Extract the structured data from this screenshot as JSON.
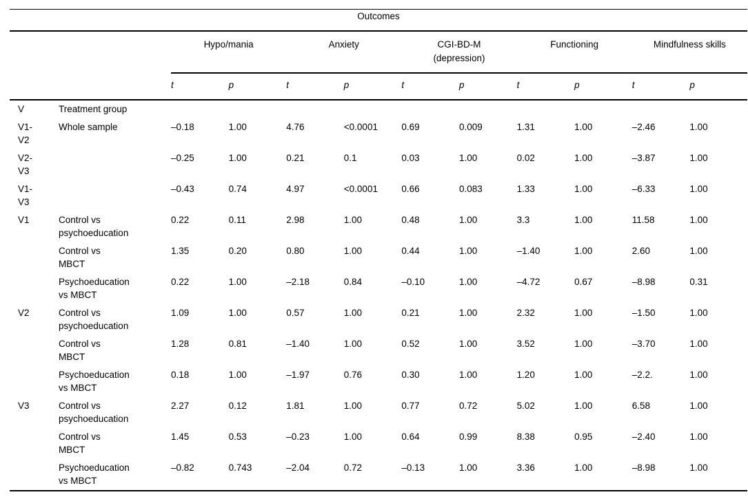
{
  "table": {
    "title": "Outcomes",
    "column_groups": [
      {
        "label": "Hypo/mania"
      },
      {
        "label": "Anxiety"
      },
      {
        "label": "CGI-BD-M\n(depression)"
      },
      {
        "label": "Functioning"
      },
      {
        "label": "Mindfulness skills"
      }
    ],
    "sub_headers": [
      "t",
      "p",
      "t",
      "p",
      "t",
      "p",
      "t",
      "p",
      "t",
      "p"
    ],
    "rows": [
      {
        "visit": "V",
        "comparison": "Treatment group",
        "values": [
          "",
          "",
          "",
          "",
          "",
          "",
          "",
          "",
          "",
          ""
        ]
      },
      {
        "visit": "V1-\nV2",
        "comparison": "Whole sample",
        "values": [
          "–0.18",
          "1.00",
          "4.76",
          "<0.0001",
          "0.69",
          "0.009",
          "1.31",
          "1.00",
          "–2.46",
          "1.00"
        ]
      },
      {
        "visit": "V2-\nV3",
        "comparison": "",
        "values": [
          "–0.25",
          "1.00",
          "0.21",
          "0.1",
          "0.03",
          "1.00",
          "0.02",
          "1.00",
          "–3.87",
          "1.00"
        ]
      },
      {
        "visit": "V1-\nV3",
        "comparison": "",
        "values": [
          "–0.43",
          "0.74",
          "4.97",
          "<0.0001",
          "0.66",
          "0.083",
          "1.33",
          "1.00",
          "–6.33",
          "1.00"
        ]
      },
      {
        "visit": "V1",
        "comparison": "Control vs\npsychoeducation",
        "values": [
          "0.22",
          "0.11",
          "2.98",
          "1.00",
          "0.48",
          "1.00",
          "3.3",
          "1.00",
          "11.58",
          "1.00"
        ]
      },
      {
        "visit": "",
        "comparison": "Control vs\nMBCT",
        "values": [
          "1.35",
          "0.20",
          "0.80",
          "1.00",
          "0.44",
          "1.00",
          "–1.40",
          "1.00",
          "2.60",
          "1.00"
        ]
      },
      {
        "visit": "",
        "comparison": "Psychoeducation\nvs MBCT",
        "values": [
          "0.22",
          "1.00",
          "–2.18",
          "0.84",
          "–0.10",
          "1.00",
          "–4.72",
          "0.67",
          "–8.98",
          "0.31"
        ]
      },
      {
        "visit": "V2",
        "comparison": "Control vs\npsychoeducation",
        "values": [
          "1.09",
          "1.00",
          "0.57",
          "1.00",
          "0.21",
          "1.00",
          "2.32",
          "1.00",
          "–1.50",
          "1.00"
        ]
      },
      {
        "visit": "",
        "comparison": "Control vs\nMBCT",
        "values": [
          "1.28",
          "0.81",
          "–1.40",
          "1.00",
          "0.52",
          "1.00",
          "3.52",
          "1.00",
          "–3.70",
          "1.00"
        ]
      },
      {
        "visit": "",
        "comparison": "Psychoeducation\nvs MBCT",
        "values": [
          "0.18",
          "1.00",
          "–1.97",
          "0.76",
          "0.30",
          "1.00",
          "1.20",
          "1.00",
          "–2.2.",
          "1.00"
        ]
      },
      {
        "visit": "V3",
        "comparison": "Control vs\npsychoeducation",
        "values": [
          "2.27",
          "0.12",
          "1.81",
          "1.00",
          "0.77",
          "0.72",
          "5.02",
          "1.00",
          "6.58",
          "1.00"
        ]
      },
      {
        "visit": "",
        "comparison": "Control vs\nMBCT",
        "values": [
          "1.45",
          "0.53",
          "–0.23",
          "1.00",
          "0.64",
          "0.99",
          "8.38",
          "0.95",
          "–2.40",
          "1.00"
        ]
      },
      {
        "visit": "",
        "comparison": "Psychoeducation\nvs MBCT",
        "values": [
          "–0.82",
          "0.743",
          "–2.04",
          "0.72",
          "–0.13",
          "1.00",
          "3.36",
          "1.00",
          "–8.98",
          "1.00"
        ]
      }
    ]
  }
}
